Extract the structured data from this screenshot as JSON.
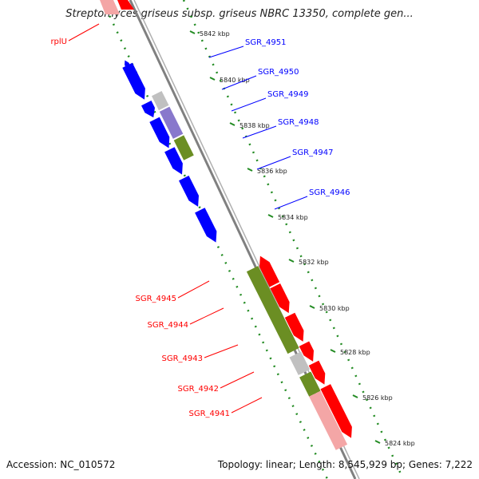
{
  "title": "Streptomyces griseus subsp. griseus NBRC 13350, complete gen...",
  "footer": {
    "accession": "Accession: NC_010572",
    "stats": "Topology: linear; Length: 8,545,929 bp; Genes: 7,222"
  },
  "colors": {
    "blue": "#0000ff",
    "red": "#ff0000",
    "pink": "#f4a6a6",
    "olive": "#6b8e23",
    "gray": "#c0c0c0",
    "lavender": "#8878cc",
    "backbone": "#808080",
    "dotted_green": "#228b22"
  },
  "ticks": [
    {
      "label": "5842 kbp"
    },
    {
      "label": "5840 kbp"
    },
    {
      "label": "5838 kbp"
    },
    {
      "label": "5836 kbp"
    },
    {
      "label": "5834 kbp"
    },
    {
      "label": "5832 kbp"
    },
    {
      "label": "5830 kbp"
    },
    {
      "label": "5828 kbp"
    },
    {
      "label": "5826 kbp"
    },
    {
      "label": "5824 kbp"
    }
  ],
  "labels_blue": [
    "SGR_4951",
    "SGR_4950",
    "SGR_4949",
    "SGR_4948",
    "SGR_4947",
    "SGR_4946"
  ],
  "labels_red": [
    "rplU",
    "SGR_4945",
    "SGR_4944",
    "SGR_4943",
    "SGR_4942",
    "SGR_4941"
  ]
}
